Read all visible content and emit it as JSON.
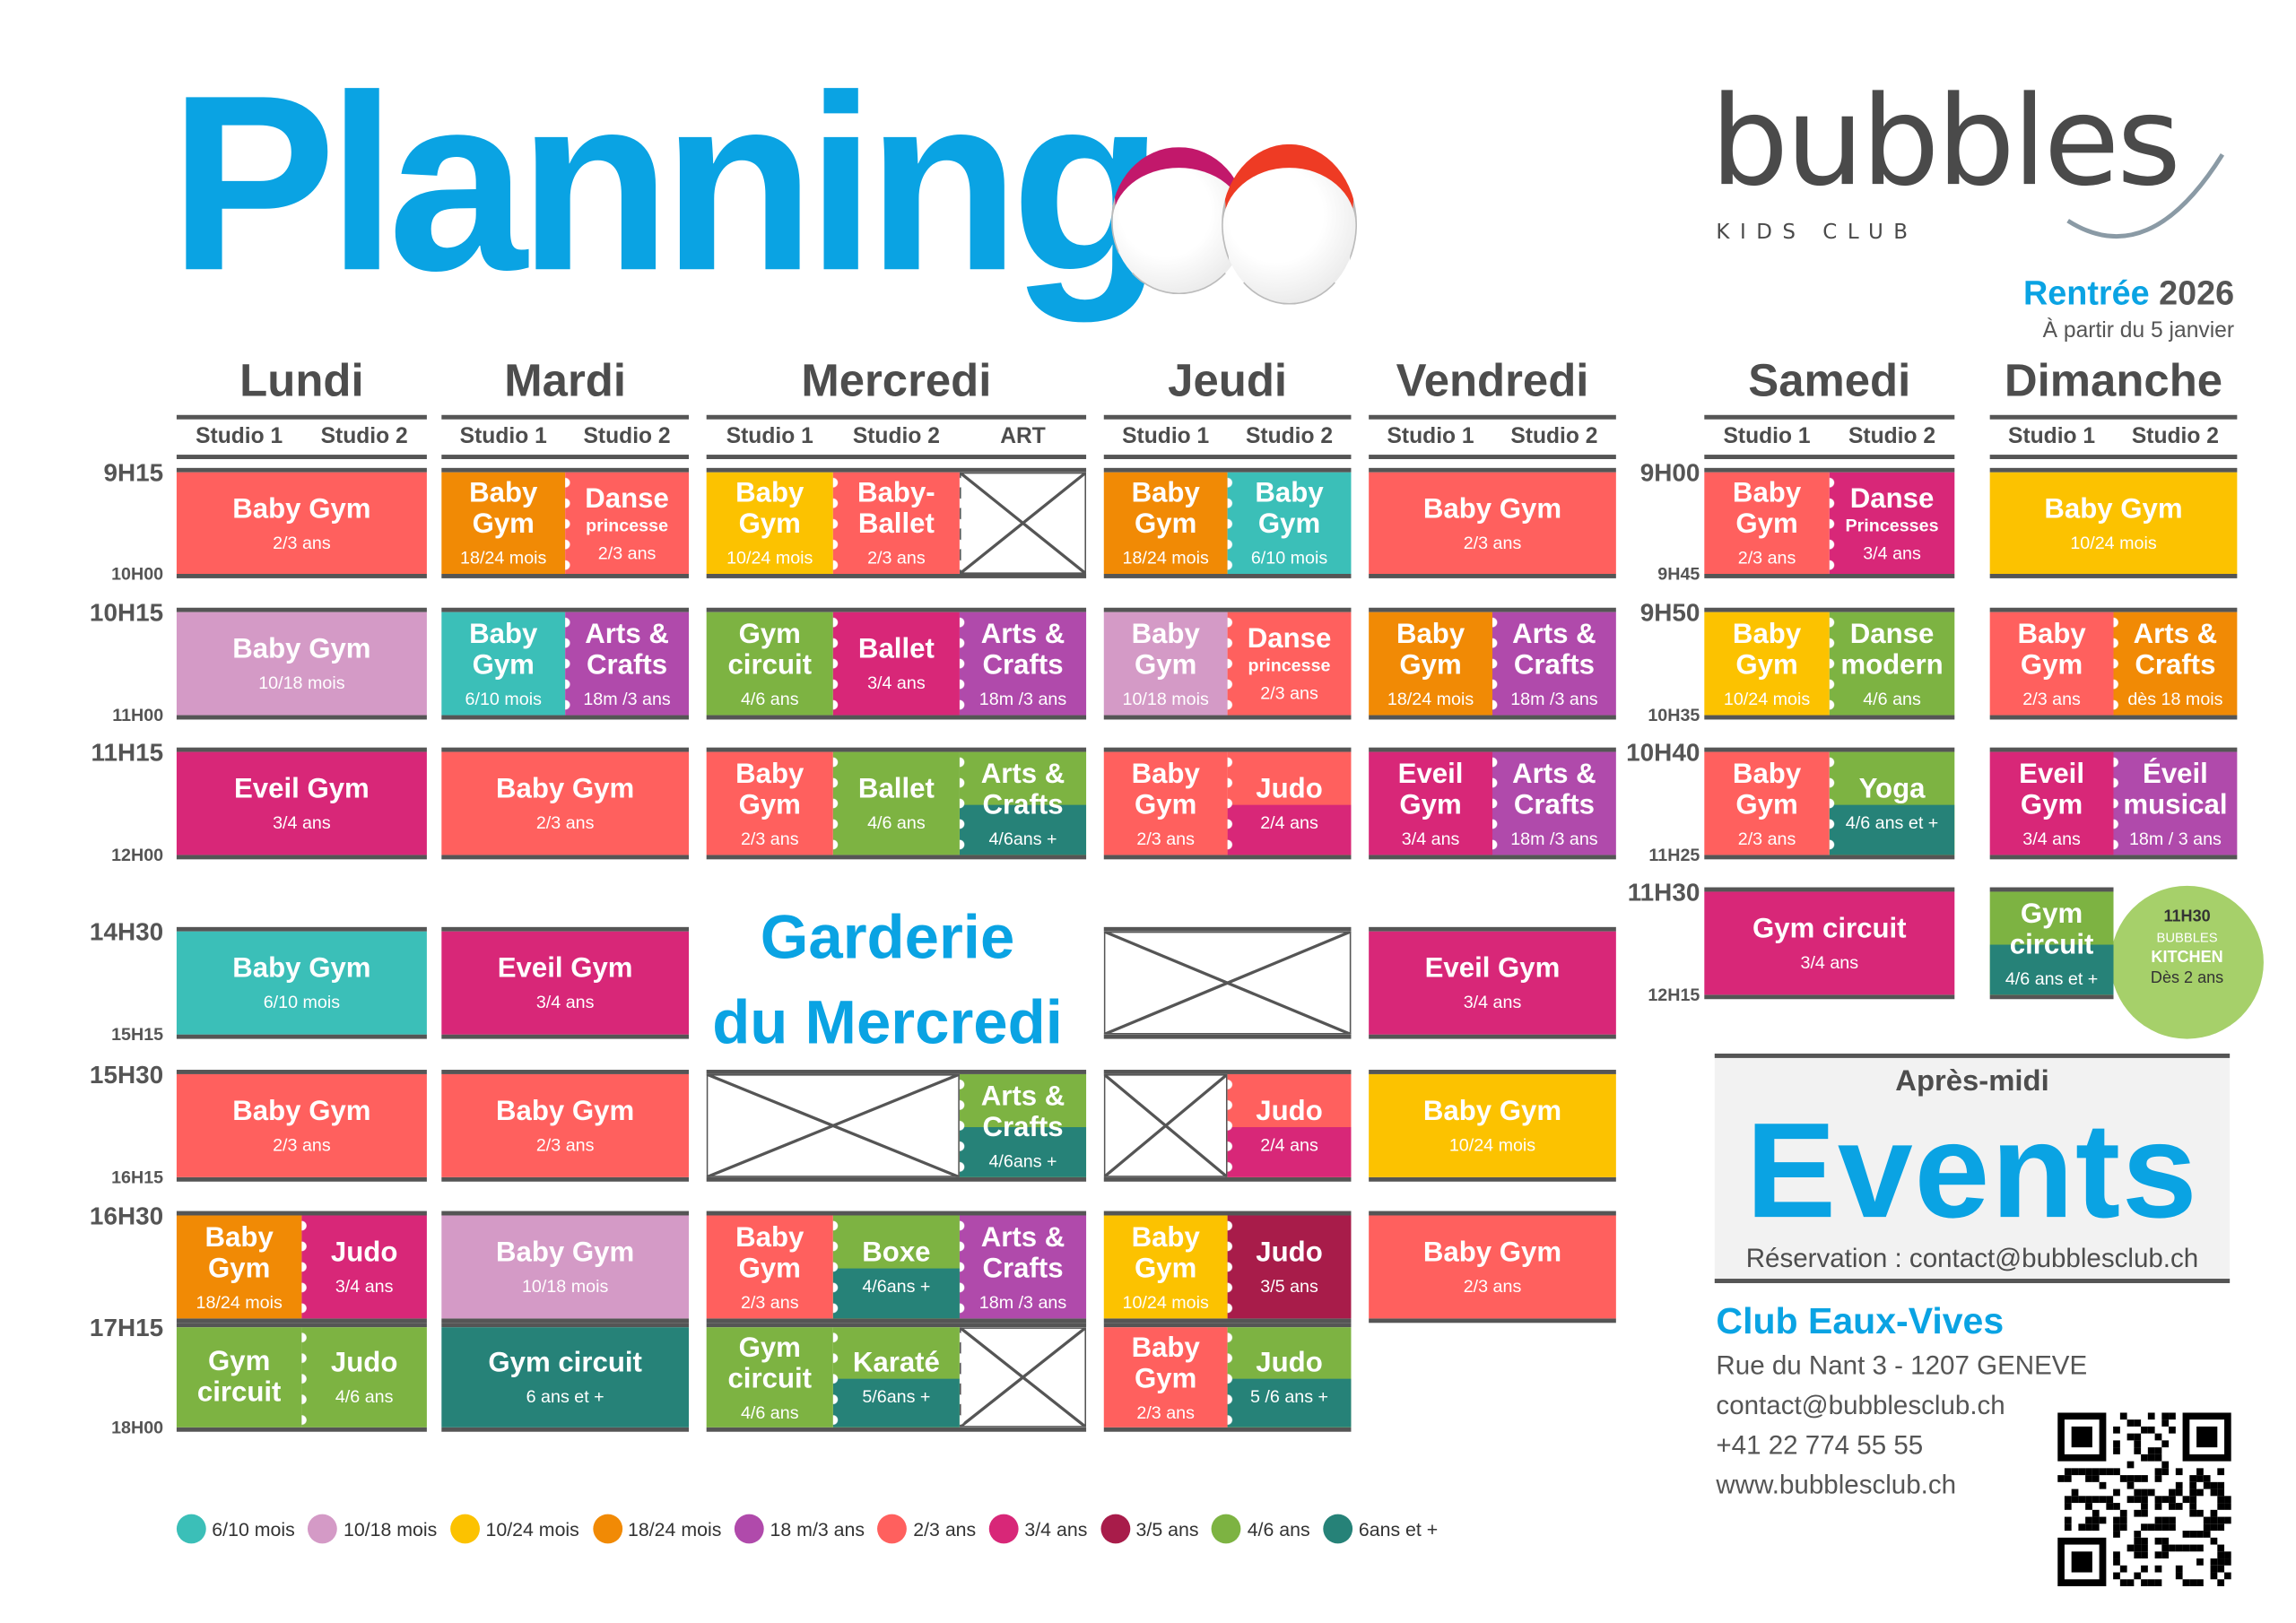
{
  "header": {
    "title": "Planning",
    "logo": "bubbles",
    "logo_sub": "KIDS CLUB",
    "rentree": "Rentrée",
    "year": "2026",
    "start": "À partir du 5 janvier"
  },
  "colors": {
    "teal": "#3bbfb8",
    "lilac": "#d49ac6",
    "yellow": "#fcc200",
    "orange": "#f18a05",
    "purple": "#b04aab",
    "coral": "#ff605e",
    "magenta": "#d82778",
    "crimson": "#a81c4a",
    "green": "#7db342",
    "darkteal": "#268278",
    "blue": "#0aa3e3"
  },
  "times_weekday": [
    [
      "9H15",
      "10H00"
    ],
    [
      "10H15",
      "11H00"
    ],
    [
      "11H15",
      "12H00"
    ],
    [
      "14H30",
      "15H15"
    ],
    [
      "15H30",
      "16H15"
    ],
    [
      "16H30",
      ""
    ],
    [
      "17H15",
      "18H00"
    ]
  ],
  "times_weekend": [
    [
      "9H00",
      "9H45"
    ],
    [
      "9H50",
      "10H35"
    ],
    [
      "10H40",
      "11H25"
    ],
    [
      "11H30",
      "12H15"
    ]
  ],
  "days": [
    {
      "name": "Lundi",
      "studios": [
        "Studio 1",
        "Studio 2"
      ],
      "rows": [
        [
          {
            "span": 2,
            "title": "Baby Gym",
            "sub": "2/3 ans",
            "color": "coral"
          }
        ],
        [
          {
            "span": 2,
            "title": "Baby Gym",
            "sub": "10/18 mois",
            "color": "lilac"
          }
        ],
        [
          {
            "span": 2,
            "title": "Eveil Gym",
            "sub": "3/4 ans",
            "color": "magenta"
          }
        ],
        [
          {
            "span": 2,
            "title": "Baby Gym",
            "sub": "6/10 mois",
            "color": "teal"
          }
        ],
        [
          {
            "span": 2,
            "title": "Baby Gym",
            "sub": "2/3 ans",
            "color": "coral"
          }
        ],
        [
          {
            "span": 1,
            "title": "Baby Gym",
            "sub": "18/24 mois",
            "color": "orange"
          },
          {
            "span": 1,
            "title": "Judo",
            "sub": "3/4 ans",
            "color": "magenta"
          }
        ],
        [
          {
            "span": 1,
            "title": "Gym circuit",
            "sub": "",
            "color": "green"
          },
          {
            "span": 1,
            "title": "Judo",
            "sub": "4/6 ans",
            "color": "green"
          }
        ]
      ]
    },
    {
      "name": "Mardi",
      "studios": [
        "Studio 1",
        "Studio 2"
      ],
      "rows": [
        [
          {
            "span": 1,
            "title": "Baby Gym",
            "sub": "18/24 mois",
            "color": "orange"
          },
          {
            "span": 1,
            "title": "Danse",
            "note": "princesse",
            "sub": "2/3 ans",
            "color": "coral"
          }
        ],
        [
          {
            "span": 1,
            "title": "Baby Gym",
            "sub": "6/10 mois",
            "color": "teal"
          },
          {
            "span": 1,
            "title": "Arts & Crafts",
            "sub": "18m /3 ans",
            "color": "purple"
          }
        ],
        [
          {
            "span": 2,
            "title": "Baby Gym",
            "sub": "2/3 ans",
            "color": "coral"
          }
        ],
        [
          {
            "span": 2,
            "title": "Eveil Gym",
            "sub": "3/4 ans",
            "color": "magenta"
          }
        ],
        [
          {
            "span": 2,
            "title": "Baby Gym",
            "sub": "2/3 ans",
            "color": "coral"
          }
        ],
        [
          {
            "span": 2,
            "title": "Baby Gym",
            "sub": "10/18 mois",
            "color": "lilac"
          }
        ],
        [
          {
            "span": 2,
            "title": "Gym circuit",
            "sub": "6 ans et +",
            "color": "darkteal"
          }
        ]
      ]
    },
    {
      "name": "Mercredi",
      "studios": [
        "Studio 1",
        "Studio 2",
        "ART"
      ],
      "garderie": [
        "Garderie",
        "du Mercredi"
      ],
      "rows": [
        [
          {
            "span": 1,
            "title": "Baby Gym",
            "sub": "10/24 mois",
            "color": "yellow"
          },
          {
            "span": 1,
            "title": "Baby-Ballet",
            "sub": "2/3 ans",
            "color": "coral"
          },
          {
            "span": 1,
            "cross": true
          }
        ],
        [
          {
            "span": 1,
            "title": "Gym circuit",
            "sub": "4/6 ans",
            "color": "green"
          },
          {
            "span": 1,
            "title": "Ballet",
            "sub": "3/4 ans",
            "color": "magenta"
          },
          {
            "span": 1,
            "title": "Arts & Crafts",
            "sub": "18m /3 ans",
            "color": "purple"
          }
        ],
        [
          {
            "span": 1,
            "title": "Baby Gym",
            "sub": "2/3 ans",
            "color": "coral"
          },
          {
            "span": 1,
            "title": "Ballet",
            "sub": "4/6 ans",
            "color": "green"
          },
          {
            "span": 1,
            "title": "Arts & Crafts",
            "sub": "4/6ans +",
            "color": "green",
            "band": "darkteal"
          }
        ],
        null,
        [
          {
            "span": 2,
            "cross": true
          },
          {
            "span": 1,
            "title": "Arts & Crafts",
            "sub": "4/6ans +",
            "color": "green",
            "band": "darkteal"
          }
        ],
        [
          {
            "span": 1,
            "title": "Baby Gym",
            "sub": "2/3 ans",
            "color": "coral"
          },
          {
            "span": 1,
            "title": "Boxe",
            "sub": "4/6ans +",
            "color": "green",
            "band": "darkteal"
          },
          {
            "span": 1,
            "title": "Arts & Crafts",
            "sub": "18m /3 ans",
            "color": "purple"
          }
        ],
        [
          {
            "span": 1,
            "title": "Gym circuit",
            "sub": "4/6 ans",
            "color": "green"
          },
          {
            "span": 1,
            "title": "Karaté",
            "sub": "5/6ans +",
            "color": "green",
            "band": "darkteal"
          },
          {
            "span": 1,
            "cross": true
          }
        ]
      ]
    },
    {
      "name": "Jeudi",
      "studios": [
        "Studio 1",
        "Studio 2"
      ],
      "rows": [
        [
          {
            "span": 1,
            "title": "Baby Gym",
            "sub": "18/24 mois",
            "color": "orange"
          },
          {
            "span": 1,
            "title": "Baby Gym",
            "sub": "6/10 mois",
            "color": "teal"
          }
        ],
        [
          {
            "span": 1,
            "title": "Baby Gym",
            "sub": "10/18 mois",
            "color": "lilac"
          },
          {
            "span": 1,
            "title": "Danse",
            "note": "princesse",
            "sub": "2/3 ans",
            "color": "coral"
          }
        ],
        [
          {
            "span": 1,
            "title": "Baby Gym",
            "sub": "2/3 ans",
            "color": "coral"
          },
          {
            "span": 1,
            "title": "Judo",
            "sub": "2/4 ans",
            "color": "coral",
            "band": "magenta"
          }
        ],
        [
          {
            "span": 2,
            "cross": true
          }
        ],
        [
          {
            "span": 1,
            "cross": true
          },
          {
            "span": 1,
            "title": "Judo",
            "sub": "2/4 ans",
            "color": "coral",
            "band": "magenta"
          }
        ],
        [
          {
            "span": 1,
            "title": "Baby Gym",
            "sub": "10/24 mois",
            "color": "yellow"
          },
          {
            "span": 1,
            "title": "Judo",
            "sub": "3/5 ans",
            "color": "crimson"
          }
        ],
        [
          {
            "span": 1,
            "title": "Baby Gym",
            "sub": "2/3 ans",
            "color": "coral"
          },
          {
            "span": 1,
            "title": "Judo",
            "sub": "5 /6 ans +",
            "color": "green",
            "band": "darkteal"
          }
        ]
      ]
    },
    {
      "name": "Vendredi",
      "studios": [
        "Studio 1",
        "Studio 2"
      ],
      "rows": [
        [
          {
            "span": 2,
            "title": "Baby Gym",
            "sub": "2/3 ans",
            "color": "coral"
          }
        ],
        [
          {
            "span": 1,
            "title": "Baby Gym",
            "sub": "18/24 mois",
            "color": "orange"
          },
          {
            "span": 1,
            "title": "Arts & Crafts",
            "sub": "18m /3 ans",
            "color": "purple"
          }
        ],
        [
          {
            "span": 1,
            "title": "Eveil Gym",
            "sub": "3/4 ans",
            "color": "magenta"
          },
          {
            "span": 1,
            "title": "Arts & Crafts",
            "sub": "18m /3 ans",
            "color": "purple"
          }
        ],
        [
          {
            "span": 2,
            "title": "Eveil Gym",
            "sub": "3/4 ans",
            "color": "magenta"
          }
        ],
        [
          {
            "span": 2,
            "title": "Baby Gym",
            "sub": "10/24 mois",
            "color": "yellow"
          }
        ],
        [
          {
            "span": 2,
            "title": "Baby Gym",
            "sub": "2/3 ans",
            "color": "coral"
          }
        ],
        null
      ]
    },
    {
      "name": "Samedi",
      "studios": [
        "Studio 1",
        "Studio 2"
      ],
      "weekend": true,
      "rows": [
        [
          {
            "span": 1,
            "title": "Baby Gym",
            "sub": "2/3 ans",
            "color": "coral"
          },
          {
            "span": 1,
            "title": "Danse",
            "note": "Princesses",
            "sub": "3/4 ans",
            "color": "magenta"
          }
        ],
        [
          {
            "span": 1,
            "title": "Baby Gym",
            "sub": "10/24 mois",
            "color": "yellow"
          },
          {
            "span": 1,
            "title": "Danse modern",
            "sub": "4/6 ans",
            "color": "green"
          }
        ],
        [
          {
            "span": 1,
            "title": "Baby Gym",
            "sub": "2/3 ans",
            "color": "coral"
          },
          {
            "span": 1,
            "title": "Yoga",
            "sub": "4/6 ans et +",
            "color": "green",
            "band": "darkteal"
          }
        ],
        [
          {
            "span": 2,
            "title": "Gym circuit",
            "sub": "3/4 ans",
            "color": "magenta"
          }
        ]
      ]
    },
    {
      "name": "Dimanche",
      "studios": [
        "Studio 1",
        "Studio 2"
      ],
      "weekend": true,
      "rows": [
        [
          {
            "span": 2,
            "title": "Baby Gym",
            "sub": "10/24 mois",
            "color": "yellow"
          }
        ],
        [
          {
            "span": 1,
            "title": "Baby Gym",
            "sub": "2/3 ans",
            "color": "coral"
          },
          {
            "span": 1,
            "title": "Arts & Crafts",
            "sub": "dès 18 mois",
            "color": "orange"
          }
        ],
        [
          {
            "span": 1,
            "title": "Eveil Gym",
            "sub": "3/4 ans",
            "color": "magenta"
          },
          {
            "span": 1,
            "title": "Éveil musical",
            "sub": "18m / 3 ans",
            "color": "purple"
          }
        ],
        [
          {
            "span": 1,
            "title": "Gym circuit",
            "sub": "4/6 ans et +",
            "color": "green",
            "band": "darkteal"
          }
        ]
      ]
    }
  ],
  "kitchen": {
    "time": "11H30",
    "brand": "BUBBLES",
    "name": "KITCHEN",
    "age": "Dès 2 ans"
  },
  "events": {
    "pre": "Après-midi",
    "title": "Events",
    "reservation": "Réservation : contact@bubblesclub.ch"
  },
  "club": {
    "name": "Club Eaux-Vives",
    "address": "Rue du  Nant 3 - 1207 GENEVE",
    "email": "contact@bubblesclub.ch",
    "phone": "+41 22 774 55 55",
    "web": "www.bubblesclub.ch"
  },
  "legend": [
    {
      "label": "6/10 mois",
      "color": "teal"
    },
    {
      "label": "10/18 mois",
      "color": "lilac"
    },
    {
      "label": "10/24 mois",
      "color": "yellow"
    },
    {
      "label": "18/24 mois",
      "color": "orange"
    },
    {
      "label": "18 m/3 ans",
      "color": "purple"
    },
    {
      "label": "2/3 ans",
      "color": "coral"
    },
    {
      "label": "3/4 ans",
      "color": "magenta"
    },
    {
      "label": "3/5 ans",
      "color": "crimson"
    },
    {
      "label": "4/6 ans",
      "color": "green"
    },
    {
      "label": "6ans et +",
      "color": "darkteal"
    }
  ]
}
